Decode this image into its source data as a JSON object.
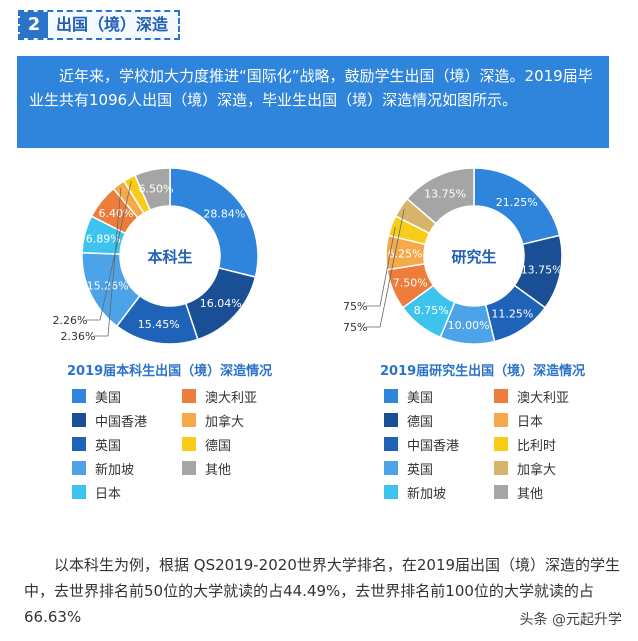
{
  "header": {
    "num": "2",
    "title": "出国（境）深造"
  },
  "intro": {
    "text": "近年来，学校加大力度推进“国际化”战略，鼓励学生出国（境）深造。2019届毕业生共有1096人出国（境）深造，毕业生出国（境）深造情况如图所示。"
  },
  "footer": {
    "text": "以本科生为例，根据 QS2019-2020世界大学排名，在2019届出国（境）深造的学生中，去世界排名前50位的大学就读的占44.49%，去世界排名前100位的大学就读的占66.63%"
  },
  "watermark": "头条 @元起升学",
  "chart_data": [
    {
      "type": "pie",
      "title": "2019届本科生出国（境）深造情况",
      "center_label": "本科生",
      "series": [
        {
          "name": "美国",
          "value": 28.84,
          "color": "#2f84dc",
          "label": "28.84%"
        },
        {
          "name": "中国香港",
          "value": 16.04,
          "color": "#1a4f96",
          "label": "16.04%"
        },
        {
          "name": "英国",
          "value": 15.45,
          "color": "#1f63b8",
          "label": "15.45%"
        },
        {
          "name": "新加坡",
          "value": 15.26,
          "color": "#4ca3e8",
          "label": "15.26%"
        },
        {
          "name": "日本",
          "value": 6.89,
          "color": "#3cc3ee",
          "label": "6.89%"
        },
        {
          "name": "澳大利亚",
          "value": 6.4,
          "color": "#ee7d3b",
          "label": "6.40%"
        },
        {
          "name": "加拿大",
          "value": 2.36,
          "color": "#f4a94b",
          "label": "2.36%"
        },
        {
          "name": "德国",
          "value": 2.26,
          "color": "#f7cd1a",
          "label": "2.26%"
        },
        {
          "name": "其他",
          "value": 6.5,
          "color": "#a5a5a5",
          "label": "6.50%"
        }
      ],
      "legend": [
        [
          "美国",
          "澳大利亚"
        ],
        [
          "中国香港",
          "加拿大"
        ],
        [
          "英国",
          "德国"
        ],
        [
          "新加坡",
          "其他"
        ],
        [
          "日本",
          ""
        ]
      ]
    },
    {
      "type": "pie",
      "title": "2019届研究生出国（境）深造情况",
      "center_label": "研究生",
      "series": [
        {
          "name": "美国",
          "value": 21.25,
          "color": "#2f84dc",
          "label": "21.25%"
        },
        {
          "name": "德国",
          "value": 13.75,
          "color": "#1a4f96",
          "label": "13.75%"
        },
        {
          "name": "中国香港",
          "value": 11.25,
          "color": "#1f63b8",
          "label": "11.25%"
        },
        {
          "name": "英国",
          "value": 10.0,
          "color": "#4ca3e8",
          "label": "10.00%"
        },
        {
          "name": "新加坡",
          "value": 8.75,
          "color": "#3cc3ee",
          "label": "8.75%"
        },
        {
          "name": "澳大利亚",
          "value": 7.5,
          "color": "#ee7d3b",
          "label": "7.50%"
        },
        {
          "name": "日本",
          "value": 6.25,
          "color": "#f4a94b",
          "label": "6.25%"
        },
        {
          "name": "比利时",
          "value": 3.75,
          "color": "#f7cd1a",
          "label": "3.75%"
        },
        {
          "name": "加拿大",
          "value": 3.75,
          "color": "#d8b46a",
          "label": "3.75%"
        },
        {
          "name": "其他",
          "value": 13.75,
          "color": "#a5a5a5",
          "label": "13.75%"
        }
      ],
      "legend": [
        [
          "美国",
          "澳大利亚"
        ],
        [
          "德国",
          "日本"
        ],
        [
          "中国香港",
          "比利时"
        ],
        [
          "英国",
          "加拿大"
        ],
        [
          "新加坡",
          "其他"
        ]
      ]
    }
  ]
}
